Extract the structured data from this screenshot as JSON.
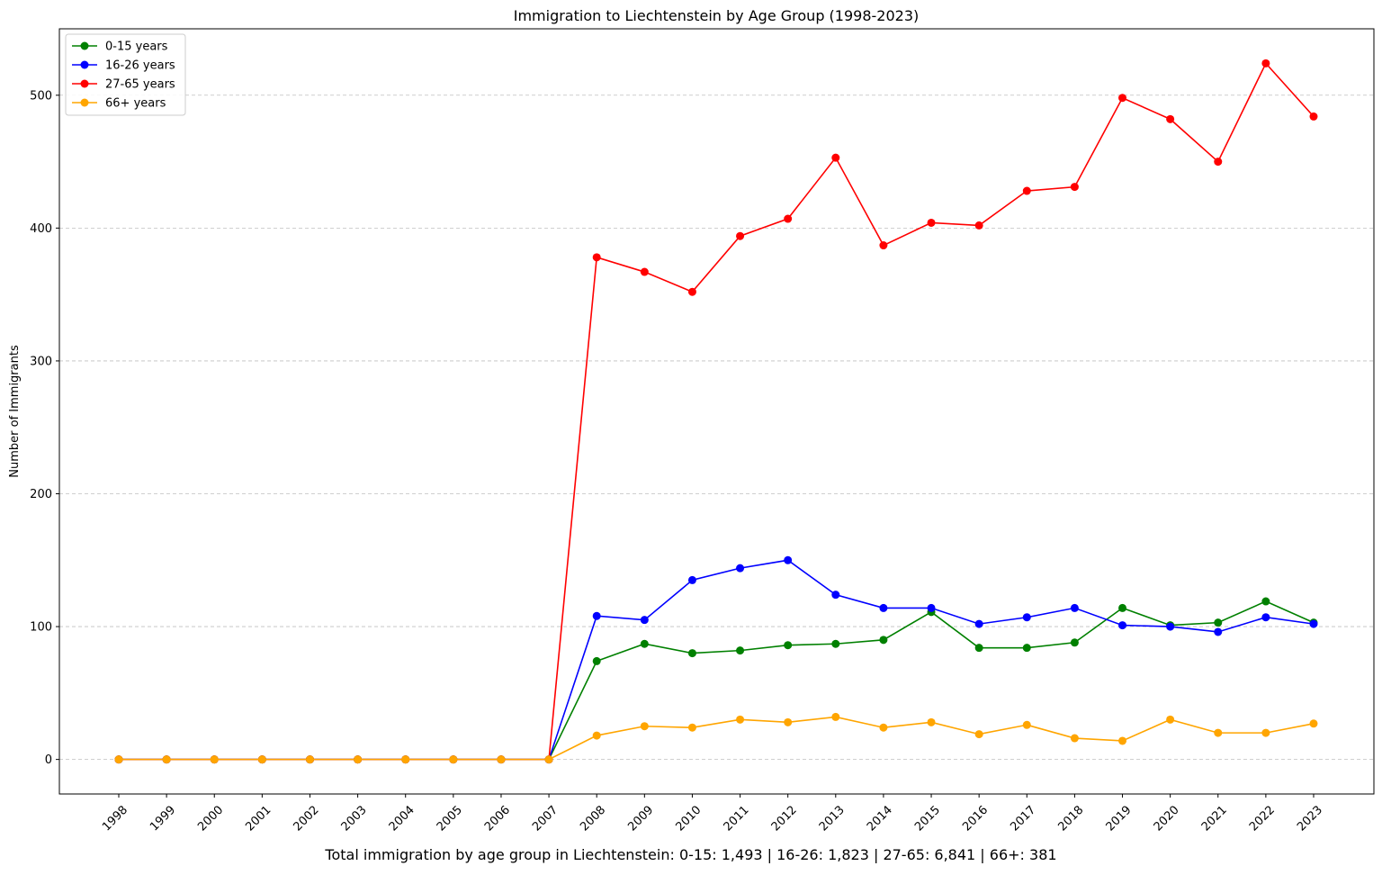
{
  "chart_data": {
    "type": "line",
    "title": "Immigration to Liechtenstein by Age Group (1998-2023)",
    "xlabel": "",
    "ylabel": "Number of Immigrants",
    "x": [
      "1998",
      "1999",
      "2000",
      "2001",
      "2002",
      "2003",
      "2004",
      "2005",
      "2006",
      "2007",
      "2008",
      "2009",
      "2010",
      "2011",
      "2012",
      "2013",
      "2014",
      "2015",
      "2016",
      "2017",
      "2018",
      "2019",
      "2020",
      "2021",
      "2022",
      "2023"
    ],
    "ylim": [
      -26,
      550
    ],
    "yticks": [
      0,
      100,
      200,
      300,
      400,
      500
    ],
    "grid": "y-dashed",
    "legend_position": "top-left",
    "series": [
      {
        "name": "0-15 years",
        "color": "#008000",
        "values": [
          0,
          0,
          0,
          0,
          0,
          0,
          0,
          0,
          0,
          0,
          74,
          87,
          80,
          82,
          86,
          87,
          90,
          111,
          84,
          84,
          88,
          114,
          101,
          103,
          119,
          103
        ]
      },
      {
        "name": "16-26 years",
        "color": "#0000ff",
        "values": [
          0,
          0,
          0,
          0,
          0,
          0,
          0,
          0,
          0,
          0,
          108,
          105,
          135,
          144,
          150,
          124,
          114,
          114,
          102,
          107,
          114,
          101,
          100,
          96,
          107,
          102
        ]
      },
      {
        "name": "27-65 years",
        "color": "#ff0000",
        "values": [
          0,
          0,
          0,
          0,
          0,
          0,
          0,
          0,
          0,
          0,
          378,
          367,
          352,
          394,
          407,
          453,
          387,
          404,
          402,
          428,
          431,
          498,
          482,
          450,
          524,
          484
        ]
      },
      {
        "name": "66+ years",
        "color": "#ffa500",
        "values": [
          0,
          0,
          0,
          0,
          0,
          0,
          0,
          0,
          0,
          0,
          18,
          25,
          24,
          30,
          28,
          32,
          24,
          28,
          19,
          26,
          16,
          14,
          30,
          20,
          20,
          27
        ]
      }
    ],
    "footer": "Total immigration by age group in Liechtenstein: 0-15: 1,493 | 16-26: 1,823 | 27-65: 6,841 | 66+: 381"
  }
}
